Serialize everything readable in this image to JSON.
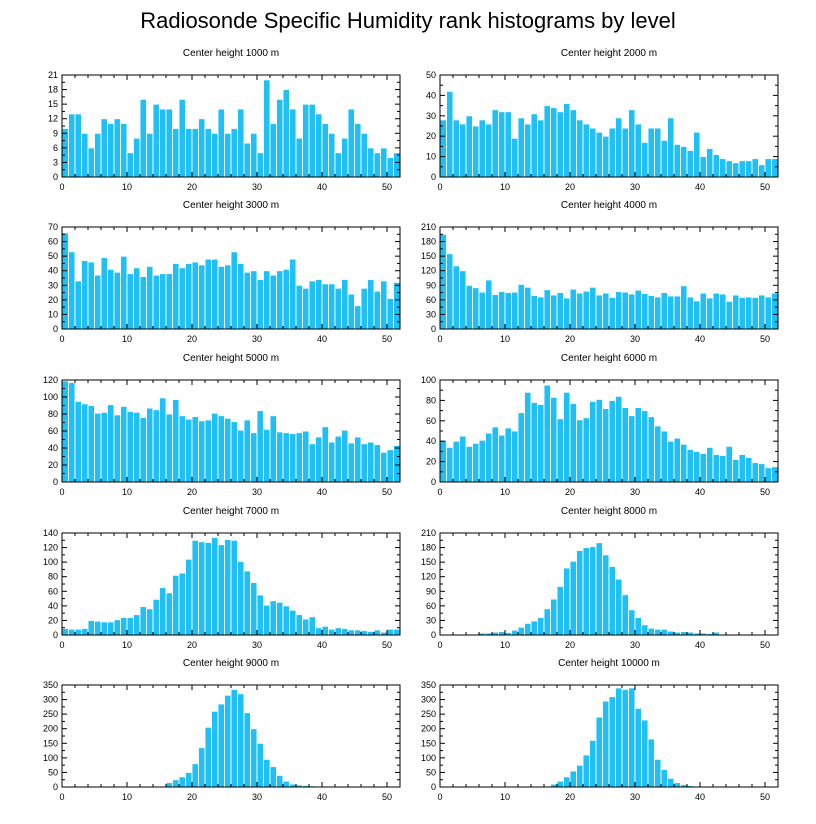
{
  "page_title": "Radiosonde Specific Humidity rank histograms by level",
  "colors": {
    "bar": "#1ec0f5",
    "bar_stroke": "#ffffff",
    "axis": "#000000"
  },
  "chart_data": [
    {
      "type": "bar",
      "title": "Center height 1000 m",
      "xlim": [
        0,
        52
      ],
      "ylim": [
        0,
        21
      ],
      "xticks": [
        0,
        10,
        20,
        30,
        40,
        50
      ],
      "yticks": [
        0,
        3,
        6,
        9,
        12,
        15,
        18,
        21
      ],
      "values": [
        10,
        13,
        13,
        9,
        6,
        9,
        12,
        11,
        12,
        11,
        5,
        8,
        16,
        9,
        15,
        14,
        14,
        10,
        16,
        10,
        10,
        12,
        10,
        9,
        14,
        9,
        10,
        14,
        7,
        9,
        5,
        20,
        11,
        16,
        18,
        14,
        8,
        15,
        15,
        13,
        11,
        9,
        5,
        8,
        14,
        11,
        9,
        6,
        5,
        6,
        4,
        5
      ]
    },
    {
      "type": "bar",
      "title": "Center height 2000 m",
      "xlim": [
        0,
        52
      ],
      "ylim": [
        0,
        50
      ],
      "xticks": [
        0,
        10,
        20,
        30,
        40,
        50
      ],
      "yticks": [
        0,
        10,
        20,
        30,
        40,
        50
      ],
      "values": [
        28,
        42,
        28,
        26,
        30,
        25,
        28,
        26,
        33,
        32,
        32,
        19,
        29,
        26,
        31,
        28,
        35,
        34,
        32,
        36,
        33,
        28,
        26,
        24,
        22,
        20,
        24,
        29,
        24,
        33,
        26,
        17,
        24,
        24,
        18,
        29,
        16,
        15,
        13,
        22,
        10,
        14,
        11,
        9,
        8,
        7,
        8,
        8,
        9,
        6,
        9,
        9
      ]
    },
    {
      "type": "bar",
      "title": "Center height 3000 m",
      "xlim": [
        0,
        52
      ],
      "ylim": [
        0,
        70
      ],
      "xticks": [
        0,
        10,
        20,
        30,
        40,
        50
      ],
      "yticks": [
        0,
        10,
        20,
        30,
        40,
        50,
        60,
        70
      ],
      "values": [
        66,
        53,
        33,
        47,
        46,
        37,
        49,
        41,
        39,
        50,
        38,
        42,
        36,
        43,
        37,
        38,
        38,
        45,
        42,
        45,
        46,
        44,
        48,
        48,
        43,
        44,
        53,
        45,
        39,
        40,
        34,
        40,
        37,
        40,
        41,
        48,
        30,
        28,
        33,
        34,
        31,
        31,
        28,
        34,
        24,
        16,
        28,
        34,
        26,
        33,
        21,
        32
      ]
    },
    {
      "type": "bar",
      "title": "Center height 4000 m",
      "xlim": [
        0,
        52
      ],
      "ylim": [
        0,
        210
      ],
      "xticks": [
        0,
        10,
        20,
        30,
        40,
        50
      ],
      "yticks": [
        0,
        30,
        60,
        90,
        120,
        150,
        180,
        210
      ],
      "values": [
        195,
        155,
        130,
        120,
        90,
        85,
        76,
        101,
        71,
        77,
        75,
        76,
        92,
        86,
        69,
        66,
        81,
        70,
        75,
        64,
        82,
        74,
        78,
        86,
        70,
        74,
        65,
        77,
        76,
        72,
        80,
        73,
        69,
        66,
        75,
        68,
        68,
        89,
        66,
        58,
        74,
        64,
        74,
        72,
        57,
        70,
        65,
        66,
        65,
        70,
        66,
        74
      ]
    },
    {
      "type": "bar",
      "title": "Center height 5000 m",
      "xlim": [
        0,
        52
      ],
      "ylim": [
        0,
        120
      ],
      "xticks": [
        0,
        10,
        20,
        30,
        40,
        50
      ],
      "yticks": [
        0,
        20,
        40,
        60,
        80,
        100,
        120
      ],
      "values": [
        119,
        117,
        95,
        92,
        90,
        81,
        82,
        91,
        79,
        89,
        83,
        82,
        76,
        87,
        85,
        99,
        80,
        97,
        78,
        74,
        77,
        72,
        73,
        81,
        78,
        75,
        71,
        61,
        73,
        58,
        84,
        62,
        78,
        59,
        58,
        57,
        58,
        60,
        45,
        53,
        65,
        47,
        54,
        61,
        46,
        53,
        45,
        47,
        44,
        35,
        38,
        43
      ]
    },
    {
      "type": "bar",
      "title": "Center height 6000 m",
      "xlim": [
        0,
        52
      ],
      "ylim": [
        0,
        100
      ],
      "xticks": [
        0,
        10,
        20,
        30,
        40,
        50
      ],
      "yticks": [
        0,
        20,
        40,
        60,
        80,
        100
      ],
      "values": [
        41,
        34,
        40,
        45,
        35,
        38,
        41,
        48,
        54,
        46,
        53,
        50,
        68,
        88,
        78,
        76,
        95,
        83,
        62,
        88,
        77,
        61,
        63,
        79,
        81,
        72,
        80,
        84,
        73,
        65,
        73,
        70,
        64,
        55,
        50,
        40,
        43,
        37,
        32,
        30,
        28,
        34,
        27,
        26,
        35,
        22,
        27,
        24,
        19,
        18,
        14,
        15
      ]
    },
    {
      "type": "bar",
      "title": "Center height 7000 m",
      "xlim": [
        0,
        52
      ],
      "ylim": [
        0,
        140
      ],
      "xticks": [
        0,
        10,
        20,
        30,
        40,
        50
      ],
      "yticks": [
        0,
        20,
        40,
        60,
        80,
        100,
        120,
        140
      ],
      "values": [
        9,
        8,
        8,
        9,
        20,
        19,
        18,
        18,
        21,
        24,
        24,
        28,
        39,
        36,
        49,
        65,
        58,
        82,
        85,
        104,
        130,
        128,
        127,
        134,
        124,
        131,
        130,
        101,
        88,
        72,
        55,
        41,
        47,
        45,
        40,
        34,
        28,
        22,
        25,
        10,
        12,
        8,
        10,
        9,
        7,
        7,
        6,
        5,
        7,
        4,
        8,
        8
      ]
    },
    {
      "type": "bar",
      "title": "Center height 8000 m",
      "xlim": [
        0,
        52
      ],
      "ylim": [
        0,
        210
      ],
      "xticks": [
        0,
        10,
        20,
        30,
        40,
        50
      ],
      "yticks": [
        0,
        30,
        60,
        90,
        120,
        150,
        180,
        210
      ],
      "values": [
        0,
        1,
        0,
        1,
        1,
        2,
        4,
        4,
        6,
        7,
        5,
        10,
        16,
        24,
        29,
        36,
        54,
        74,
        100,
        138,
        152,
        174,
        180,
        182,
        190,
        165,
        141,
        115,
        83,
        52,
        36,
        21,
        14,
        12,
        12,
        8,
        6,
        7,
        6,
        4,
        4,
        3,
        6,
        1,
        1,
        0,
        0,
        1,
        0,
        0,
        1,
        0
      ]
    },
    {
      "type": "bar",
      "title": "Center height 9000 m",
      "xlim": [
        0,
        52
      ],
      "ylim": [
        0,
        350
      ],
      "xticks": [
        0,
        10,
        20,
        30,
        40,
        50
      ],
      "yticks": [
        0,
        50,
        100,
        150,
        200,
        250,
        300,
        350
      ],
      "values": [
        0,
        0,
        0,
        0,
        0,
        0,
        0,
        0,
        0,
        0,
        0,
        0,
        0,
        0,
        0,
        0,
        15,
        25,
        35,
        50,
        80,
        135,
        205,
        260,
        285,
        315,
        335,
        320,
        255,
        200,
        150,
        95,
        70,
        40,
        20,
        10,
        7,
        5,
        4,
        3,
        2,
        1,
        1,
        0,
        0,
        0,
        0,
        0,
        0,
        0,
        0,
        0
      ]
    },
    {
      "type": "bar",
      "title": "Center height 10000 m",
      "xlim": [
        0,
        52
      ],
      "ylim": [
        0,
        350
      ],
      "xticks": [
        0,
        10,
        20,
        30,
        40,
        50
      ],
      "yticks": [
        0,
        50,
        100,
        150,
        200,
        250,
        300,
        350
      ],
      "values": [
        0,
        0,
        0,
        0,
        0,
        0,
        0,
        0,
        0,
        0,
        0,
        0,
        0,
        0,
        0,
        0,
        0,
        10,
        20,
        35,
        55,
        75,
        110,
        160,
        240,
        295,
        310,
        340,
        335,
        340,
        270,
        230,
        165,
        95,
        60,
        30,
        15,
        8,
        5,
        3,
        2,
        1,
        1,
        0,
        0,
        0,
        0,
        0,
        0,
        0,
        0,
        0
      ]
    }
  ]
}
